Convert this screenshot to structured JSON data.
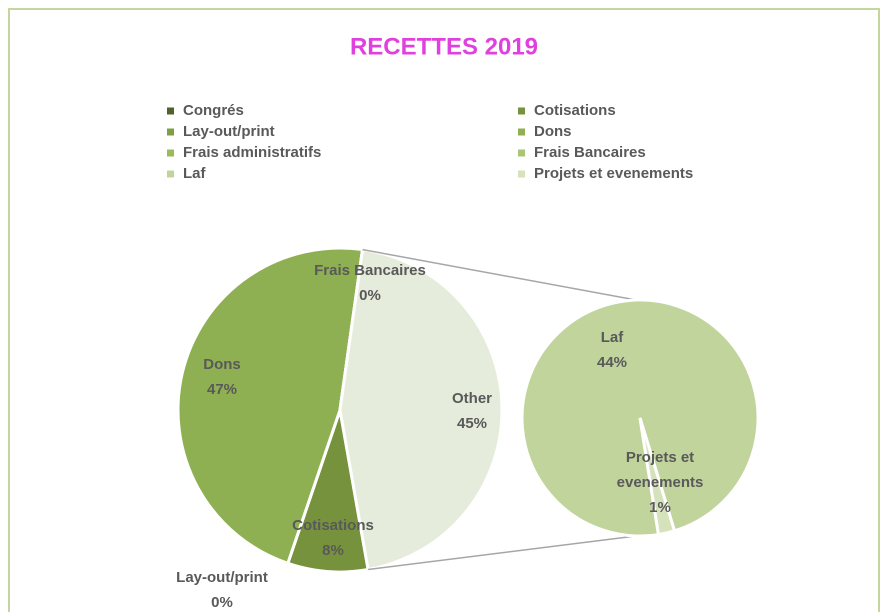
{
  "chart_data": {
    "type": "pie-of-pie",
    "title": "RECETTES 2019",
    "categories": [
      "Congrés",
      "Cotisations",
      "Lay-out/print",
      "Dons",
      "Frais administratifs",
      "Frais Bancaires",
      "Laf",
      "Projets et evenements"
    ],
    "values": [
      0,
      8,
      0,
      47,
      0,
      0,
      44,
      1
    ],
    "value_labels": [
      null,
      "8%",
      "0%",
      "47%",
      null,
      "0%",
      "44%",
      "1%"
    ],
    "colors": [
      "#4f6228",
      "#76923c",
      "#7f9f45",
      "#8eb052",
      "#9bbb59",
      "#aac47a",
      "#c0d49c",
      "#d5e2bb"
    ],
    "other": {
      "name": "Other",
      "value": 45,
      "value_label": "45%",
      "color": "#e6ecdc"
    },
    "legend": "top"
  }
}
